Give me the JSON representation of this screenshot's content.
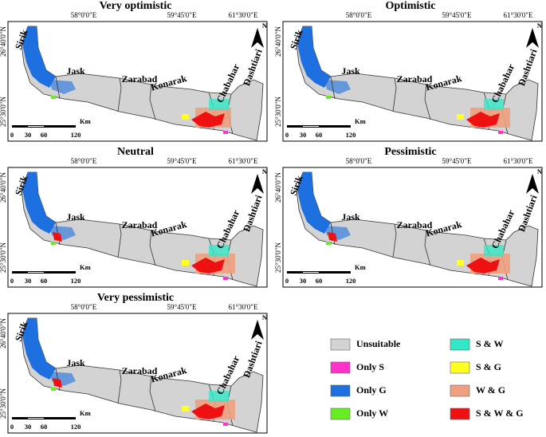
{
  "panels": [
    {
      "title": "Very optimistic"
    },
    {
      "title": "Optimistic"
    },
    {
      "title": "Neutral"
    },
    {
      "title": "Pessimistic"
    },
    {
      "title": "Very pessimistic"
    }
  ],
  "map": {
    "lon_labels": [
      "58°0'0\"E",
      "59°45'0\"E",
      "61°30'0\"E"
    ],
    "lat_labels": [
      "26°40'0\"N",
      "25°30'0\"N"
    ],
    "regions": [
      "Sirik",
      "Jask",
      "Zarabad",
      "Konarak",
      "Chabahar",
      "Dashtiari"
    ],
    "north": "N",
    "scale_labels": [
      "0",
      "30",
      "60",
      "120"
    ],
    "scale_unit": "Km"
  },
  "legend": {
    "items": [
      {
        "label": "Unsuitable",
        "color": "#d3d3d3"
      },
      {
        "label": "Only S",
        "color": "#ff33cc"
      },
      {
        "label": "Only G",
        "color": "#1e6fe0"
      },
      {
        "label": "Only W",
        "color": "#66ee22"
      },
      {
        "label": "S & W",
        "color": "#33e8c8"
      },
      {
        "label": "S & G",
        "color": "#ffff22"
      },
      {
        "label": "W & G",
        "color": "#f0a080"
      },
      {
        "label": "S & W & G",
        "color": "#ee1111"
      }
    ]
  }
}
